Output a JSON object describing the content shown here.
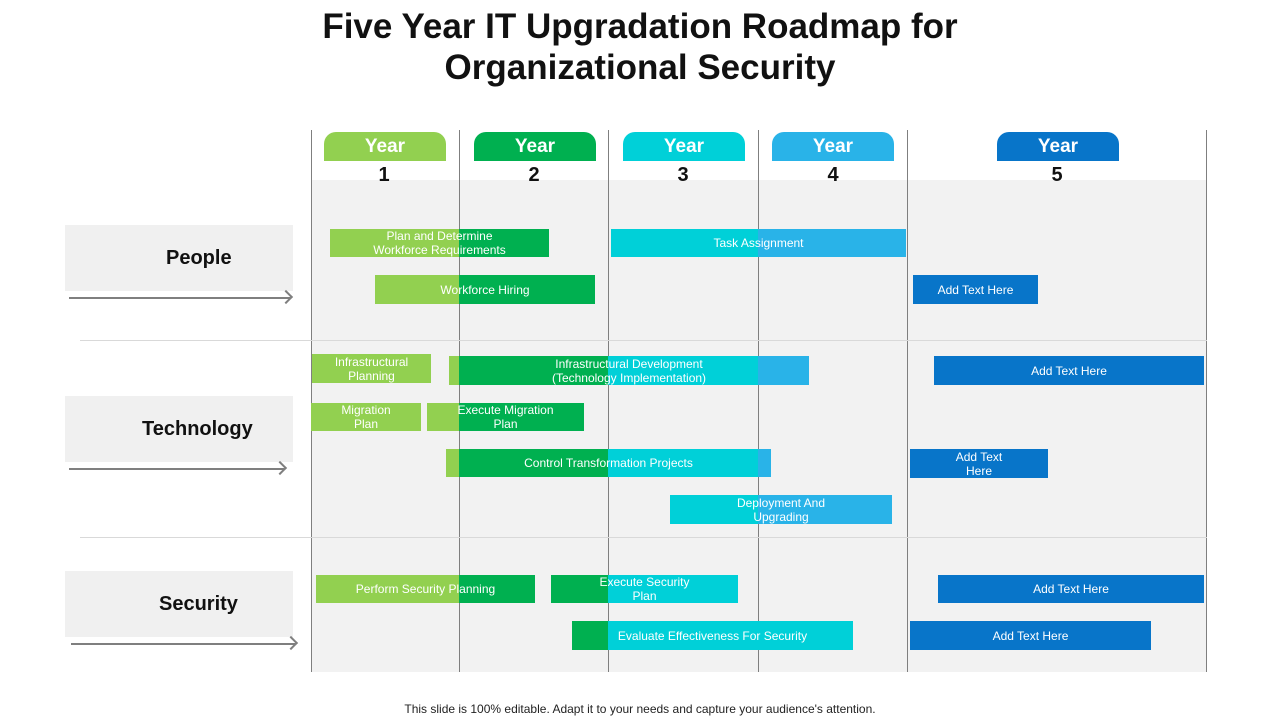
{
  "title": {
    "line1": "Five Year IT Upgradation Roadmap for",
    "line2": "Organizational Security"
  },
  "colors": {
    "year1": "#92d050",
    "year2": "#00b050",
    "year3": "#00d0d8",
    "year4": "#29b3e8",
    "year5": "#0875c9",
    "panel": "#f2f2f2",
    "gridline": "#7f7f7f"
  },
  "years": [
    {
      "label": "Year",
      "number": "1"
    },
    {
      "label": "Year",
      "number": "2"
    },
    {
      "label": "Year",
      "number": "3"
    },
    {
      "label": "Year",
      "number": "4"
    },
    {
      "label": "Year",
      "number": "5"
    }
  ],
  "categories": [
    {
      "label": "People"
    },
    {
      "label": "Technology"
    },
    {
      "label": "Security"
    }
  ],
  "tasks": {
    "plan_determine": "Plan and Determine\nWorkforce Requirements",
    "task_assignment": "Task Assignment",
    "workforce_hiring": "Workforce Hiring",
    "people_y5": "Add Text Here",
    "infra_planning": "Infrastructural\nPlanning",
    "infra_development": "Infrastructural Development\n(Technology Implementation)",
    "tech_y5_a": "Add Text Here",
    "migration_plan": "Migration\nPlan",
    "execute_migration": "Execute Migration\nPlan",
    "control_transformation": "Control Transformation Projects",
    "tech_y5_b": "Add Text\nHere",
    "deployment": "Deployment And\nUpgrading",
    "security_planning": "Perform Security Planning",
    "execute_security": "Execute Security\nPlan",
    "security_y5_a": "Add Text Here",
    "evaluate_effectiveness": "Evaluate Effectiveness For Security",
    "security_y5_b": "Add Text Here"
  },
  "footer": "This slide is 100% editable. Adapt it to your needs and capture your audience's attention."
}
